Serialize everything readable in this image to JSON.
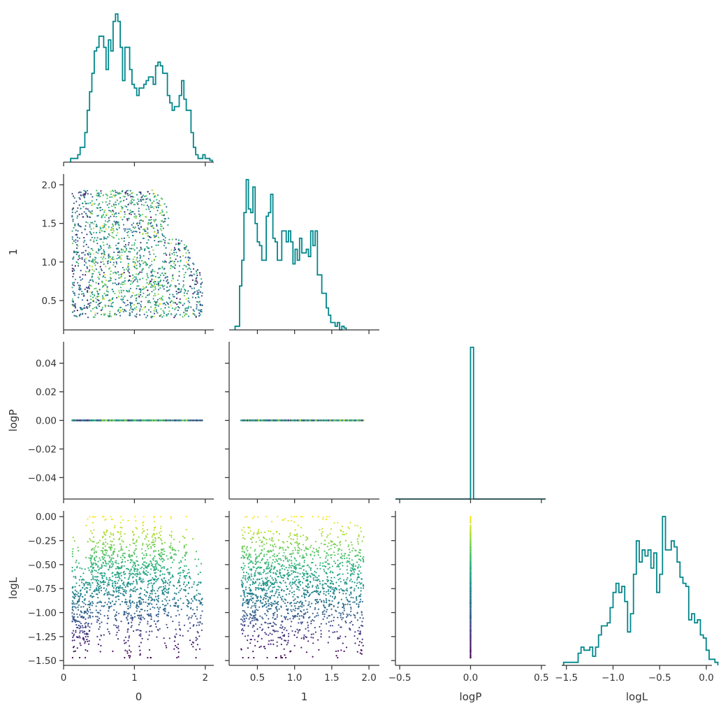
{
  "chart_data": {
    "type": "corner",
    "params": [
      "0",
      "1",
      "logP",
      "logL"
    ],
    "axis_labels": [
      "0",
      "1",
      "logP",
      "logL"
    ],
    "ranges": {
      "0": [
        0,
        2.12
      ],
      "1": [
        0.12,
        2.14
      ],
      "logP": [
        -0.53,
        0.53
      ],
      "logL": [
        -1.55,
        0.06
      ]
    },
    "ticks": {
      "0": [
        0,
        1,
        2
      ],
      "1": [
        0.5,
        1.0,
        1.5,
        2.0
      ],
      "logP": [
        -0.5,
        0.0,
        0.5
      ],
      "logL": [
        -1.5,
        -1.0,
        -0.5,
        0.0
      ]
    },
    "tick_labels": {
      "0": [
        "0",
        "1",
        "2"
      ],
      "1": [
        "0.5",
        "1.0",
        "1.5",
        "2.0"
      ],
      "1_y": [
        "0.5",
        "1.0",
        "1.5",
        "2.0"
      ],
      "logP": [
        "−0.5",
        "0.0",
        "0.5"
      ],
      "logP_y": [
        "−0.04",
        "−0.02",
        "0.00",
        "0.02",
        "0.04"
      ],
      "logL": [
        "−1.5",
        "−1.0",
        "−0.5",
        "0.0"
      ],
      "logL_y": [
        "−1.50",
        "−1.25",
        "−1.00",
        "−0.75",
        "−0.50",
        "−0.25",
        "0.00"
      ]
    },
    "y_ticks": {
      "1": [
        0.5,
        1.0,
        1.5,
        2.0
      ],
      "logP": [
        -0.04,
        -0.02,
        0.0,
        0.02,
        0.04
      ],
      "logL": [
        -1.5,
        -1.25,
        -1.0,
        -0.75,
        -0.5,
        -0.25,
        0.0
      ]
    },
    "y_ranges": {
      "logP": [
        -0.055,
        0.055
      ]
    },
    "hist_color": "#00868b",
    "colormap": "viridis",
    "color_by": "logL",
    "histograms": {
      "0": {
        "bin_start": 0.1,
        "bin_width": 0.0333,
        "counts": [
          1,
          1,
          1,
          2,
          4,
          4,
          8,
          14,
          19,
          24,
          30,
          31,
          34,
          34,
          31,
          25,
          33,
          30,
          38,
          40,
          38,
          31,
          22,
          31,
          31,
          25,
          21,
          20,
          18,
          20,
          20,
          21,
          22,
          23,
          23,
          21,
          26,
          27,
          26,
          24,
          24,
          18,
          16,
          14,
          15,
          15,
          18,
          22,
          17,
          14,
          14,
          8,
          4,
          2,
          1,
          1,
          2,
          1,
          1,
          0.5
        ]
      },
      "1": {
        "bin_start": 0.2,
        "bin_width": 0.0299,
        "counts": [
          1,
          1,
          12,
          19,
          32,
          41,
          33,
          32,
          39,
          29,
          24,
          23,
          19,
          19,
          31,
          32,
          37,
          25,
          24,
          19,
          19,
          27,
          27,
          24,
          27,
          24,
          18,
          22,
          19,
          25,
          21,
          21,
          22,
          20,
          27,
          23,
          27,
          15,
          15,
          10,
          10,
          6,
          4,
          2,
          2,
          1,
          2,
          0,
          1,
          0.5
        ]
      },
      "logP": {
        "bin_start": -0.53,
        "bin_width": 0.0212,
        "counts": [
          0,
          0,
          0,
          0,
          0,
          0,
          0,
          0,
          0,
          0,
          0,
          0,
          0,
          0,
          0,
          0,
          0,
          0,
          0,
          0,
          0,
          0,
          0,
          0,
          0,
          100,
          0,
          0,
          0,
          0,
          0,
          0,
          0,
          0,
          0,
          0,
          0,
          0,
          0,
          0,
          0,
          0,
          0,
          0,
          0,
          0,
          0,
          0,
          0,
          0
        ]
      },
      "logL": {
        "bin_start": -1.53,
        "bin_width": 0.0312,
        "counts": [
          1,
          1,
          1,
          1,
          1,
          4,
          6,
          5,
          5,
          6,
          3,
          6,
          10,
          13,
          13,
          14,
          19,
          24,
          27,
          24,
          26,
          21,
          11,
          17,
          30,
          41,
          34,
          38,
          36,
          38,
          32,
          37,
          24,
          30,
          49,
          38,
          38,
          41,
          39,
          34,
          29,
          27,
          26,
          15,
          17,
          14,
          15,
          10,
          9,
          5,
          2,
          2,
          1
        ]
      }
    },
    "samples": {
      "n": 1600,
      "seed": 20240521,
      "description_note": ""
    },
    "logP_value": 0.0
  }
}
